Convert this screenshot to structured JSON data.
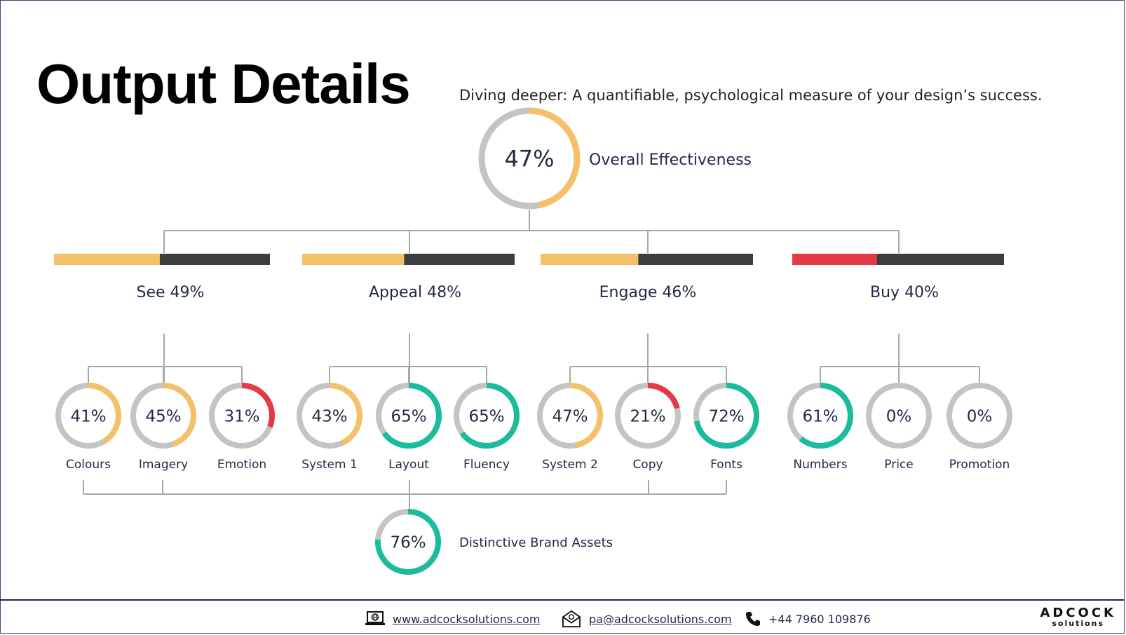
{
  "page": {
    "title": "Output Details",
    "subtitle": "Diving deeper: A quantifiable, psychological measure of your design’s success."
  },
  "colors": {
    "amber": "#f5c06a",
    "teal": "#1abc9c",
    "red": "#e63946",
    "grey": "#c4c4c4",
    "dark": "#3d3d3d",
    "connector": "#a7a7a7"
  },
  "overall": {
    "label": "Overall Effectiveness",
    "value": 47,
    "display": "47%",
    "color": "amber"
  },
  "categories": [
    {
      "id": "see",
      "label": "See 49%",
      "value": 49,
      "color": "amber",
      "metrics": [
        {
          "id": "colours",
          "label": "Colours",
          "value": 41,
          "display": "41%",
          "color": "amber"
        },
        {
          "id": "imagery",
          "label": "Imagery",
          "value": 45,
          "display": "45%",
          "color": "amber"
        },
        {
          "id": "emotion",
          "label": "Emotion",
          "value": 31,
          "display": "31%",
          "color": "red"
        }
      ]
    },
    {
      "id": "appeal",
      "label": "Appeal 48%",
      "value": 48,
      "color": "amber",
      "metrics": [
        {
          "id": "system-1",
          "label": "System 1",
          "value": 43,
          "display": "43%",
          "color": "amber"
        },
        {
          "id": "layout",
          "label": "Layout",
          "value": 65,
          "display": "65%",
          "color": "teal"
        },
        {
          "id": "fluency",
          "label": "Fluency",
          "value": 65,
          "display": "65%",
          "color": "teal"
        }
      ]
    },
    {
      "id": "engage",
      "label": "Engage 46%",
      "value": 46,
      "color": "amber",
      "metrics": [
        {
          "id": "system-2",
          "label": "System 2",
          "value": 47,
          "display": "47%",
          "color": "amber"
        },
        {
          "id": "copy",
          "label": "Copy",
          "value": 21,
          "display": "21%",
          "color": "red"
        },
        {
          "id": "fonts",
          "label": "Fonts",
          "value": 72,
          "display": "72%",
          "color": "teal"
        }
      ]
    },
    {
      "id": "buy",
      "label": "Buy 40%",
      "value": 40,
      "color": "red",
      "metrics": [
        {
          "id": "numbers",
          "label": "Numbers",
          "value": 61,
          "display": "61%",
          "color": "teal"
        },
        {
          "id": "price",
          "label": "Price",
          "value": 0,
          "display": "0%",
          "color": "grey"
        },
        {
          "id": "promotion",
          "label": "Promotion",
          "value": 0,
          "display": "0%",
          "color": "grey"
        }
      ]
    }
  ],
  "brand_assets": {
    "label": "Distinctive Brand Assets",
    "value": 76,
    "display": "76%",
    "color": "teal"
  },
  "footer": {
    "website": "www.adcocksolutions.com",
    "email": "pa@adcocksolutions.com",
    "phone": "+44 7960 109876",
    "logo_main": "ADCOCK",
    "logo_sub": "solutions",
    "website_icon": "laptop-globe-icon",
    "email_icon": "envelope-icon",
    "phone_icon": "phone-icon"
  }
}
